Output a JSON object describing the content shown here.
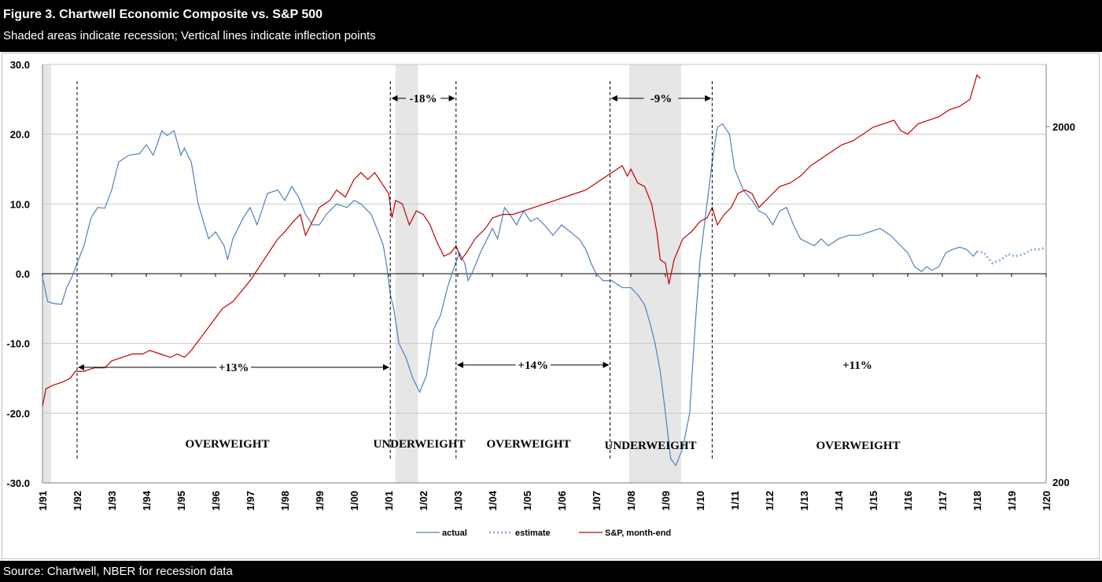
{
  "header": {
    "title": "Figure 3. Chartwell Economic Composite vs. S&P 500",
    "subtitle": "Shaded areas indicate recession; Vertical lines indicate inflection points"
  },
  "footer": {
    "source": "Source: Chartwell, NBER for recession data"
  },
  "chart_data": {
    "type": "line",
    "y_left": {
      "ticks": [
        "30.0",
        "20.0",
        "10.0",
        "0.0",
        "-10.0",
        "-20.0",
        "-30.0"
      ],
      "range": [
        -30,
        30
      ]
    },
    "y_right": {
      "ticks": [
        "2000",
        "200"
      ],
      "scale": "log"
    },
    "x": {
      "range": [
        1991.0,
        2020.0
      ],
      "ticks": [
        "1/91",
        "1/92",
        "1/93",
        "1/94",
        "1/95",
        "1/96",
        "1/97",
        "1/98",
        "1/99",
        "1/00",
        "1/01",
        "1/02",
        "1/03",
        "1/04",
        "1/05",
        "1/06",
        "1/07",
        "1/08",
        "1/09",
        "1/10",
        "1/11",
        "1/12",
        "1/13",
        "1/14",
        "1/15",
        "1/16",
        "1/17",
        "1/18",
        "1/19",
        "1/20"
      ]
    },
    "recessions": [
      [
        1991.0,
        1991.25
      ],
      [
        2001.2,
        2001.85
      ],
      [
        2007.95,
        2009.45
      ]
    ],
    "series": [
      {
        "name": "actual",
        "color": "#4f81bd",
        "style": "solid",
        "points": [
          [
            1991.0,
            -0.5
          ],
          [
            1991.15,
            -4.0
          ],
          [
            1991.35,
            -4.3
          ],
          [
            1991.55,
            -4.4
          ],
          [
            1991.7,
            -2.0
          ],
          [
            1991.85,
            -0.5
          ],
          [
            1992.0,
            1.5
          ],
          [
            1992.2,
            4.0
          ],
          [
            1992.4,
            8.0
          ],
          [
            1992.6,
            9.5
          ],
          [
            1992.8,
            9.4
          ],
          [
            1993.0,
            12.0
          ],
          [
            1993.2,
            16.0
          ],
          [
            1993.5,
            17.0
          ],
          [
            1993.8,
            17.2
          ],
          [
            1994.0,
            18.5
          ],
          [
            1994.2,
            17.0
          ],
          [
            1994.45,
            20.5
          ],
          [
            1994.6,
            19.8
          ],
          [
            1994.8,
            20.5
          ],
          [
            1995.0,
            17.0
          ],
          [
            1995.1,
            18.0
          ],
          [
            1995.3,
            16.0
          ],
          [
            1995.5,
            10.0
          ],
          [
            1995.8,
            5.0
          ],
          [
            1996.0,
            6.0
          ],
          [
            1996.25,
            4.0
          ],
          [
            1996.35,
            2.0
          ],
          [
            1996.5,
            5.0
          ],
          [
            1996.8,
            8.0
          ],
          [
            1997.0,
            9.5
          ],
          [
            1997.2,
            7.0
          ],
          [
            1997.5,
            11.5
          ],
          [
            1997.8,
            12.0
          ],
          [
            1998.0,
            10.5
          ],
          [
            1998.2,
            12.5
          ],
          [
            1998.4,
            11.0
          ],
          [
            1998.6,
            8.5
          ],
          [
            1998.8,
            7.0
          ],
          [
            1999.0,
            7.0
          ],
          [
            1999.2,
            8.5
          ],
          [
            1999.5,
            10.0
          ],
          [
            1999.8,
            9.5
          ],
          [
            2000.0,
            10.5
          ],
          [
            2000.2,
            10.0
          ],
          [
            2000.5,
            8.5
          ],
          [
            2000.7,
            6.0
          ],
          [
            2000.85,
            4.0
          ],
          [
            2000.95,
            1.0
          ],
          [
            2001.05,
            -3.0
          ],
          [
            2001.15,
            -5.0
          ],
          [
            2001.3,
            -10.0
          ],
          [
            2001.5,
            -12.0
          ],
          [
            2001.7,
            -15.0
          ],
          [
            2001.9,
            -17.0
          ],
          [
            2002.1,
            -14.5
          ],
          [
            2002.3,
            -8.0
          ],
          [
            2002.5,
            -6.0
          ],
          [
            2002.7,
            -2.0
          ],
          [
            2002.9,
            1.0
          ],
          [
            2003.05,
            3.0
          ],
          [
            2003.2,
            1.5
          ],
          [
            2003.3,
            -1.0
          ],
          [
            2003.45,
            0.5
          ],
          [
            2003.65,
            3.0
          ],
          [
            2003.85,
            5.0
          ],
          [
            2004.0,
            6.5
          ],
          [
            2004.15,
            5.0
          ],
          [
            2004.35,
            9.5
          ],
          [
            2004.5,
            8.5
          ],
          [
            2004.7,
            7.0
          ],
          [
            2004.9,
            9.0
          ],
          [
            2005.1,
            7.5
          ],
          [
            2005.3,
            8.0
          ],
          [
            2005.5,
            7.0
          ],
          [
            2005.75,
            5.5
          ],
          [
            2006.0,
            7.0
          ],
          [
            2006.25,
            6.0
          ],
          [
            2006.5,
            5.0
          ],
          [
            2006.7,
            3.5
          ],
          [
            2006.85,
            1.5
          ],
          [
            2007.0,
            0.0
          ],
          [
            2007.2,
            -1.0
          ],
          [
            2007.45,
            -1.0
          ],
          [
            2007.6,
            -1.5
          ],
          [
            2007.75,
            -2.0
          ],
          [
            2008.0,
            -2.0
          ],
          [
            2008.2,
            -3.0
          ],
          [
            2008.4,
            -4.5
          ],
          [
            2008.55,
            -7.0
          ],
          [
            2008.7,
            -10.0
          ],
          [
            2008.85,
            -14.0
          ],
          [
            2009.0,
            -20.0
          ],
          [
            2009.15,
            -26.5
          ],
          [
            2009.3,
            -27.5
          ],
          [
            2009.5,
            -25.0
          ],
          [
            2009.7,
            -20.0
          ],
          [
            2009.85,
            -8.0
          ],
          [
            2010.0,
            2.0
          ],
          [
            2010.2,
            10.0
          ],
          [
            2010.35,
            16.0
          ],
          [
            2010.5,
            21.0
          ],
          [
            2010.65,
            21.5
          ],
          [
            2010.85,
            20.0
          ],
          [
            2011.0,
            15.0
          ],
          [
            2011.25,
            12.0
          ],
          [
            2011.5,
            10.5
          ],
          [
            2011.7,
            9.0
          ],
          [
            2011.9,
            8.5
          ],
          [
            2012.1,
            7.0
          ],
          [
            2012.3,
            9.0
          ],
          [
            2012.5,
            9.5
          ],
          [
            2012.7,
            7.0
          ],
          [
            2012.9,
            5.0
          ],
          [
            2013.1,
            4.5
          ],
          [
            2013.3,
            4.0
          ],
          [
            2013.5,
            5.0
          ],
          [
            2013.7,
            4.0
          ],
          [
            2014.0,
            5.0
          ],
          [
            2014.3,
            5.5
          ],
          [
            2014.6,
            5.5
          ],
          [
            2014.9,
            6.0
          ],
          [
            2015.2,
            6.5
          ],
          [
            2015.5,
            5.5
          ],
          [
            2015.8,
            4.0
          ],
          [
            2016.0,
            3.0
          ],
          [
            2016.2,
            1.0
          ],
          [
            2016.4,
            0.3
          ],
          [
            2016.55,
            1.0
          ],
          [
            2016.7,
            0.5
          ],
          [
            2016.9,
            1.0
          ],
          [
            2017.1,
            3.0
          ],
          [
            2017.3,
            3.5
          ],
          [
            2017.5,
            3.8
          ],
          [
            2017.7,
            3.5
          ],
          [
            2017.9,
            2.5
          ],
          [
            2018.0,
            3.2
          ]
        ]
      },
      {
        "name": "estimate",
        "color": "#95b3d7",
        "style": "dotted",
        "points": [
          [
            2018.0,
            3.2
          ],
          [
            2018.2,
            3.0
          ],
          [
            2018.45,
            1.5
          ],
          [
            2018.7,
            2.0
          ],
          [
            2018.9,
            2.8
          ],
          [
            2019.1,
            2.5
          ],
          [
            2019.35,
            2.8
          ],
          [
            2019.6,
            3.5
          ],
          [
            2019.85,
            3.5
          ],
          [
            2020.0,
            3.8
          ]
        ]
      },
      {
        "name": "S&P, month-end",
        "color": "#c00000",
        "style": "solid",
        "points": [
          [
            1991.0,
            -19.0
          ],
          [
            1991.1,
            -16.5
          ],
          [
            1991.3,
            -16.0
          ],
          [
            1991.6,
            -15.5
          ],
          [
            1991.8,
            -15.0
          ],
          [
            1991.95,
            -14.0
          ],
          [
            1992.2,
            -14.0
          ],
          [
            1992.5,
            -13.5
          ],
          [
            1992.8,
            -13.5
          ],
          [
            1993.0,
            -12.5
          ],
          [
            1993.3,
            -12.0
          ],
          [
            1993.6,
            -11.5
          ],
          [
            1993.9,
            -11.5
          ],
          [
            1994.1,
            -11.0
          ],
          [
            1994.4,
            -11.5
          ],
          [
            1994.7,
            -12.0
          ],
          [
            1994.9,
            -11.5
          ],
          [
            1995.1,
            -12.0
          ],
          [
            1995.3,
            -11.0
          ],
          [
            1995.6,
            -9.0
          ],
          [
            1995.9,
            -7.0
          ],
          [
            1996.2,
            -5.0
          ],
          [
            1996.5,
            -4.0
          ],
          [
            1996.75,
            -2.5
          ],
          [
            1997.0,
            -1.0
          ],
          [
            1997.2,
            0.5
          ],
          [
            1997.4,
            2.0
          ],
          [
            1997.6,
            3.5
          ],
          [
            1997.8,
            5.0
          ],
          [
            1998.0,
            6.0
          ],
          [
            1998.25,
            7.5
          ],
          [
            1998.45,
            8.5
          ],
          [
            1998.6,
            5.5
          ],
          [
            1998.8,
            7.5
          ],
          [
            1999.0,
            9.5
          ],
          [
            1999.3,
            10.5
          ],
          [
            1999.5,
            12.0
          ],
          [
            1999.75,
            11.0
          ],
          [
            2000.0,
            13.5
          ],
          [
            2000.2,
            14.5
          ],
          [
            2000.4,
            13.5
          ],
          [
            2000.6,
            14.5
          ],
          [
            2000.8,
            13.0
          ],
          [
            2001.0,
            11.5
          ],
          [
            2001.1,
            8.0
          ],
          [
            2001.2,
            10.5
          ],
          [
            2001.4,
            10.0
          ],
          [
            2001.6,
            7.0
          ],
          [
            2001.8,
            9.0
          ],
          [
            2002.0,
            8.5
          ],
          [
            2002.2,
            7.0
          ],
          [
            2002.4,
            4.5
          ],
          [
            2002.6,
            2.5
          ],
          [
            2002.8,
            3.0
          ],
          [
            2002.95,
            4.0
          ],
          [
            2003.1,
            2.0
          ],
          [
            2003.25,
            3.0
          ],
          [
            2003.5,
            5.0
          ],
          [
            2003.8,
            6.5
          ],
          [
            2004.0,
            8.0
          ],
          [
            2004.3,
            8.5
          ],
          [
            2004.6,
            8.5
          ],
          [
            2004.9,
            9.0
          ],
          [
            2005.2,
            9.5
          ],
          [
            2005.5,
            10.0
          ],
          [
            2005.8,
            10.5
          ],
          [
            2006.1,
            11.0
          ],
          [
            2006.4,
            11.5
          ],
          [
            2006.7,
            12.0
          ],
          [
            2007.0,
            13.0
          ],
          [
            2007.3,
            14.0
          ],
          [
            2007.6,
            15.0
          ],
          [
            2007.75,
            15.5
          ],
          [
            2007.9,
            14.0
          ],
          [
            2008.0,
            15.0
          ],
          [
            2008.2,
            13.0
          ],
          [
            2008.4,
            12.5
          ],
          [
            2008.6,
            10.0
          ],
          [
            2008.75,
            6.0
          ],
          [
            2008.85,
            2.0
          ],
          [
            2009.0,
            1.5
          ],
          [
            2009.1,
            -1.5
          ],
          [
            2009.25,
            2.0
          ],
          [
            2009.5,
            5.0
          ],
          [
            2009.75,
            6.0
          ],
          [
            2010.0,
            7.5
          ],
          [
            2010.2,
            8.0
          ],
          [
            2010.35,
            9.5
          ],
          [
            2010.5,
            7.0
          ],
          [
            2010.7,
            8.5
          ],
          [
            2010.9,
            9.5
          ],
          [
            2011.1,
            11.5
          ],
          [
            2011.3,
            12.0
          ],
          [
            2011.5,
            11.5
          ],
          [
            2011.7,
            9.5
          ],
          [
            2011.9,
            10.5
          ],
          [
            2012.1,
            11.5
          ],
          [
            2012.3,
            12.5
          ],
          [
            2012.6,
            13.0
          ],
          [
            2012.9,
            14.0
          ],
          [
            2013.2,
            15.5
          ],
          [
            2013.5,
            16.5
          ],
          [
            2013.8,
            17.5
          ],
          [
            2014.1,
            18.5
          ],
          [
            2014.4,
            19.0
          ],
          [
            2014.7,
            20.0
          ],
          [
            2015.0,
            21.0
          ],
          [
            2015.3,
            21.5
          ],
          [
            2015.6,
            22.0
          ],
          [
            2015.8,
            20.5
          ],
          [
            2016.0,
            20.0
          ],
          [
            2016.3,
            21.5
          ],
          [
            2016.6,
            22.0
          ],
          [
            2016.9,
            22.5
          ],
          [
            2017.2,
            23.5
          ],
          [
            2017.5,
            24.0
          ],
          [
            2017.8,
            25.0
          ],
          [
            2018.0,
            28.5
          ],
          [
            2018.1,
            28.0
          ]
        ]
      }
    ],
    "inflection_lines": [
      1992.0,
      2001.05,
      2002.95,
      2007.4,
      2010.35
    ],
    "annotations": [
      {
        "text": "-18%",
        "arrow_from": 2001.05,
        "arrow_to": 2002.95
      },
      {
        "text": "-9%",
        "arrow_from": 2007.4,
        "arrow_to": 2010.35
      },
      {
        "text": "+13%",
        "arrow_from": 1992.0,
        "arrow_to": 2001.05
      },
      {
        "text": "+14%",
        "arrow_from": 2002.95,
        "arrow_to": 2007.4
      },
      {
        "text": "+11%"
      }
    ],
    "regime_labels": [
      "OVERWEIGHT",
      "UNDERWEIGHT",
      "OVERWEIGHT",
      "UNDERWEIGHT",
      "OVERWEIGHT"
    ],
    "legend": [
      "actual",
      "estimate",
      "S&P, month-end"
    ],
    "legend_position": "bottom-center",
    "grid": "horizontal"
  }
}
